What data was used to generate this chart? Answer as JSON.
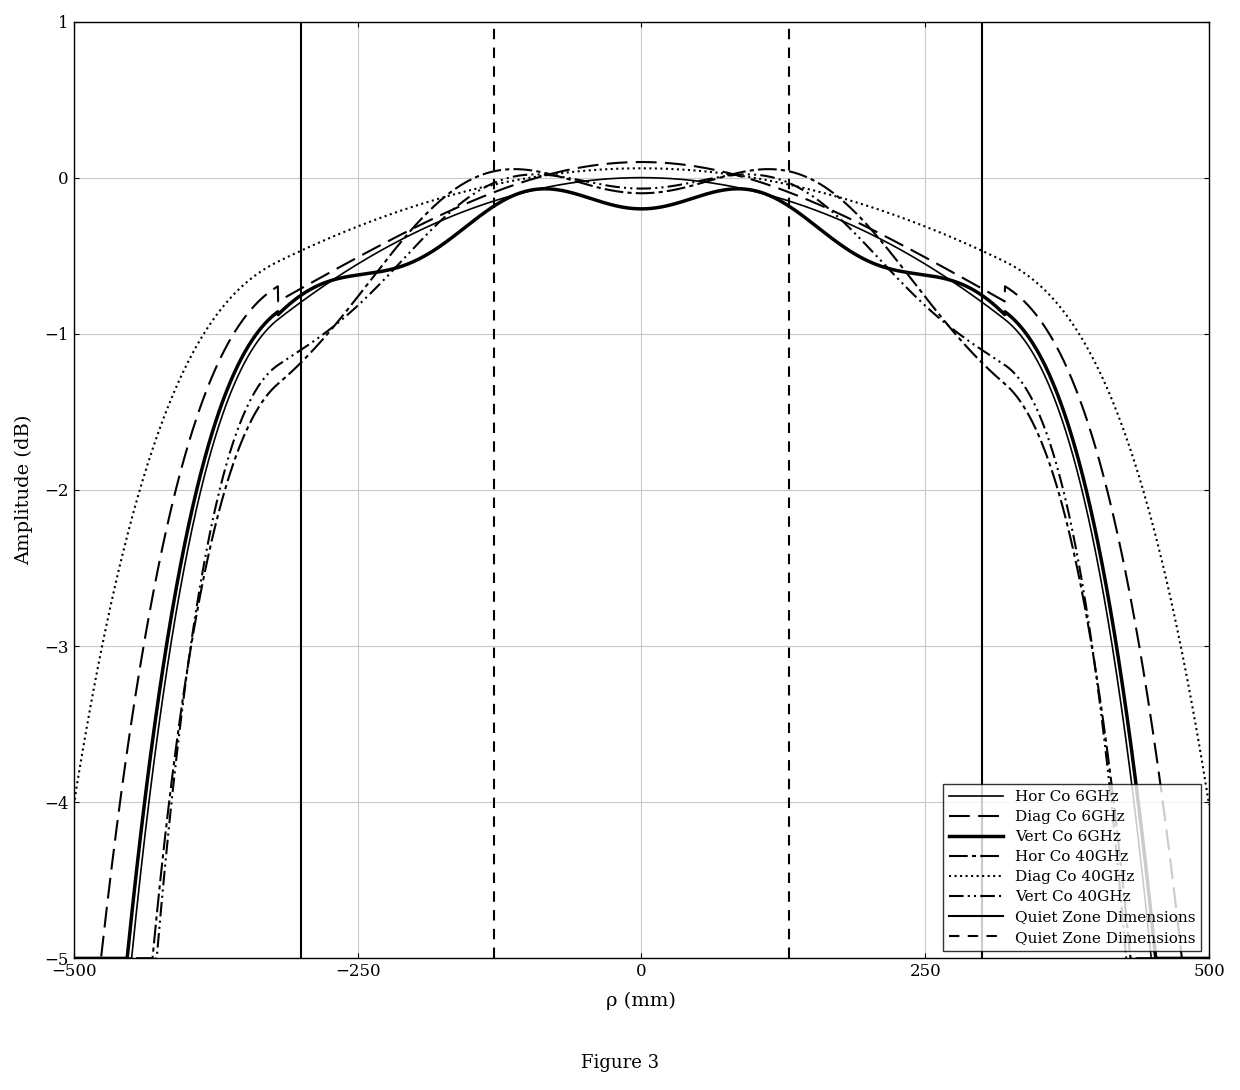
{
  "xlim": [
    -500,
    500
  ],
  "ylim": [
    -5,
    1
  ],
  "xlabel": "ρ (mm)",
  "ylabel": "Amplitude (dB)",
  "figure_caption": "Figure 3",
  "grid_color": "#c8c8c8",
  "background_color": "#ffffff",
  "solid_vlines": [
    -300,
    300
  ],
  "dashed_vlines": [
    -130,
    130
  ],
  "xticks": [
    -500,
    -250,
    0,
    250,
    500
  ],
  "yticks": [
    -5,
    -4,
    -3,
    -2,
    -1,
    0,
    1
  ]
}
